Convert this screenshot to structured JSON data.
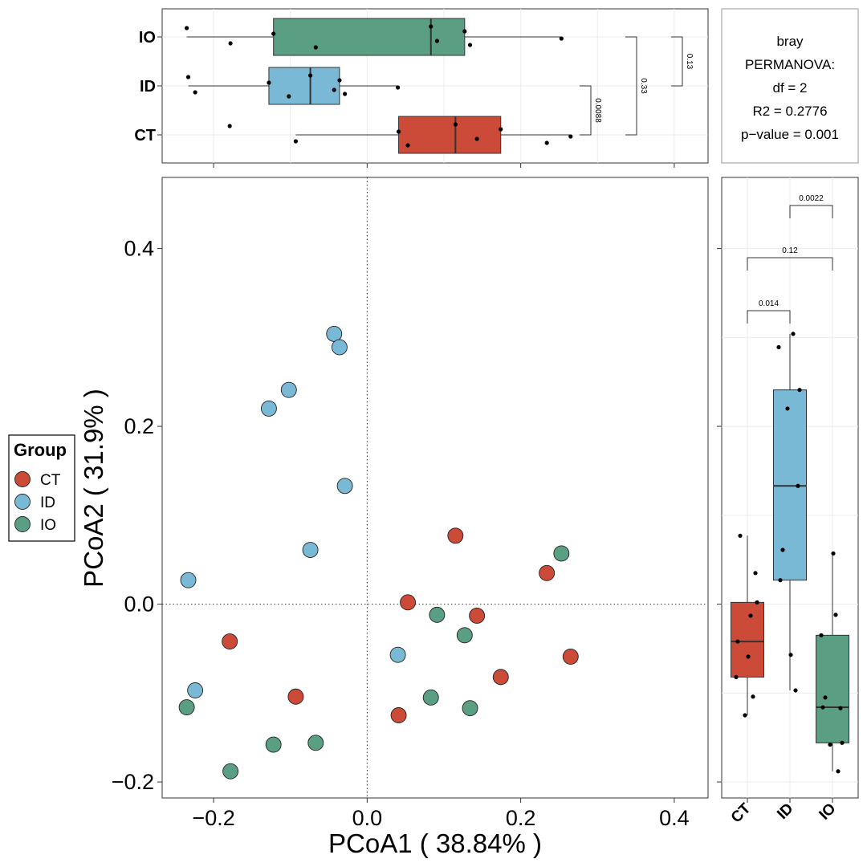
{
  "colors": {
    "CT": "#CC4A38",
    "ID": "#79B9D6",
    "IO": "#5A9E84"
  },
  "legend": {
    "title": "Group",
    "items": [
      "CT",
      "ID",
      "IO"
    ]
  },
  "stats": {
    "metric": "bray",
    "test": "PERMANOVA:",
    "df": "df = 2",
    "r2": "R2 = 0.2776",
    "pvalue": "p−value = 0.001"
  },
  "chart_data": [
    {
      "type": "scatter",
      "name": "pcoa",
      "xlabel": "PCoA1 ( 38.84% )",
      "ylabel": "PCoA2 ( 31.9% )",
      "xlim": [
        -0.267,
        0.444
      ],
      "ylim": [
        -0.218,
        0.48
      ],
      "xticks": [
        -0.2,
        0.0,
        0.2,
        0.4
      ],
      "xtick_labels": [
        "−0.2",
        "0.0",
        "0.2",
        "0.4"
      ],
      "yticks": [
        -0.2,
        0.0,
        0.2,
        0.4
      ],
      "ytick_labels": [
        "−0.2",
        "0.0",
        "0.2",
        "0.4"
      ],
      "reference_lines": {
        "x": 0,
        "y": 0
      },
      "series": [
        {
          "name": "CT",
          "points": [
            [
              -0.179,
              -0.042
            ],
            [
              -0.093,
              -0.104
            ],
            [
              0.041,
              -0.125
            ],
            [
              0.053,
              0.002
            ],
            [
              0.115,
              0.077
            ],
            [
              0.143,
              -0.013
            ],
            [
              0.174,
              -0.082
            ],
            [
              0.234,
              0.035
            ],
            [
              0.265,
              -0.059
            ]
          ]
        },
        {
          "name": "ID",
          "points": [
            [
              -0.233,
              0.027
            ],
            [
              -0.224,
              -0.097
            ],
            [
              -0.128,
              0.22
            ],
            [
              -0.102,
              0.241
            ],
            [
              -0.074,
              0.061
            ],
            [
              -0.043,
              0.304
            ],
            [
              -0.036,
              0.289
            ],
            [
              -0.029,
              0.133
            ],
            [
              0.04,
              -0.057
            ]
          ]
        },
        {
          "name": "IO",
          "points": [
            [
              -0.235,
              -0.116
            ],
            [
              -0.178,
              -0.188
            ],
            [
              -0.122,
              -0.158
            ],
            [
              -0.067,
              -0.156
            ],
            [
              0.083,
              -0.105
            ],
            [
              0.091,
              -0.012
            ],
            [
              0.127,
              -0.035
            ],
            [
              0.134,
              -0.117
            ],
            [
              0.253,
              0.057
            ]
          ]
        }
      ]
    },
    {
      "type": "boxplot",
      "name": "pcoa1-box",
      "orientation": "horizontal",
      "categories": [
        "CT",
        "ID",
        "IO"
      ],
      "boxes": [
        {
          "group": "CT",
          "whisker_low": -0.093,
          "q1": 0.041,
          "median": 0.115,
          "q3": 0.174,
          "whisker_high": 0.265,
          "outliers": [
            -0.179
          ]
        },
        {
          "group": "ID",
          "whisker_low": -0.233,
          "q1": -0.128,
          "median": -0.074,
          "q3": -0.036,
          "whisker_high": 0.04,
          "outliers": []
        },
        {
          "group": "IO",
          "whisker_low": -0.235,
          "q1": -0.122,
          "median": 0.083,
          "q3": 0.127,
          "whisker_high": 0.253,
          "outliers": []
        }
      ],
      "comparisons": [
        {
          "pair": [
            "CT",
            "ID"
          ],
          "p": "0.0088"
        },
        {
          "pair": [
            "CT",
            "IO"
          ],
          "p": "0.33"
        },
        {
          "pair": [
            "ID",
            "IO"
          ],
          "p": "0.13"
        }
      ]
    },
    {
      "type": "boxplot",
      "name": "pcoa2-box",
      "orientation": "vertical",
      "categories": [
        "CT",
        "ID",
        "IO"
      ],
      "boxes": [
        {
          "group": "CT",
          "whisker_low": -0.125,
          "q1": -0.082,
          "median": -0.042,
          "q3": 0.002,
          "whisker_high": 0.077,
          "outliers": []
        },
        {
          "group": "ID",
          "whisker_low": -0.097,
          "q1": 0.027,
          "median": 0.133,
          "q3": 0.241,
          "whisker_high": 0.304,
          "outliers": []
        },
        {
          "group": "IO",
          "whisker_low": -0.188,
          "q1": -0.156,
          "median": -0.116,
          "q3": -0.035,
          "whisker_high": 0.057,
          "outliers": []
        }
      ],
      "comparisons": [
        {
          "pair": [
            "CT",
            "ID"
          ],
          "p": "0.014"
        },
        {
          "pair": [
            "CT",
            "IO"
          ],
          "p": "0.12"
        },
        {
          "pair": [
            "ID",
            "IO"
          ],
          "p": "0.0022"
        }
      ]
    }
  ]
}
